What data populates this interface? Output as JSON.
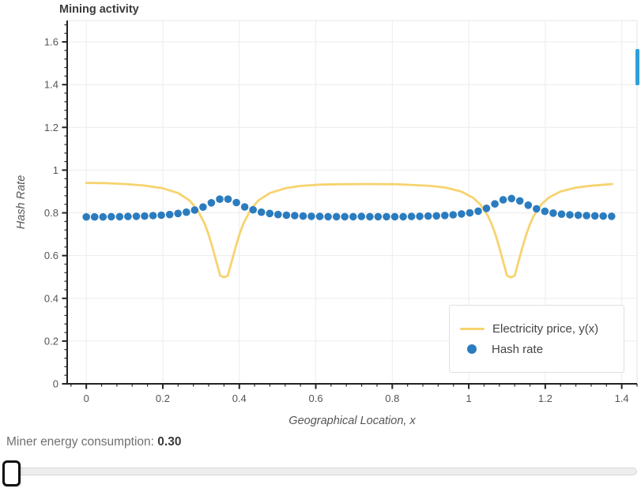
{
  "title": "Mining activity",
  "colors": {
    "price_line": "#f7d36f",
    "hash_dots": "#2b7cbf",
    "accent_bar": "#2f9fd8",
    "grid": "#ececec",
    "axis": "#222222",
    "tick_label": "#555555",
    "frame_border": "#e5e5e5"
  },
  "legend": {
    "items": [
      {
        "label": "Electricity price, y(x)",
        "swatch": "line"
      },
      {
        "label": "Hash rate",
        "swatch": "circle"
      }
    ]
  },
  "widget": {
    "label": "Miner energy consumption: ",
    "value": "0.30"
  },
  "slider": {
    "handle_position_pct": 0
  },
  "chart_data": {
    "type": "line+scatter",
    "title": "Mining activity",
    "xlabel": "Geographical Location, x",
    "ylabel": "Hash Rate",
    "xlim": [
      -0.05,
      1.44
    ],
    "ylim": [
      0,
      1.7
    ],
    "x_ticks": [
      0,
      0.2,
      0.4,
      0.6,
      0.8,
      1,
      1.2,
      1.4
    ],
    "y_ticks": [
      0,
      0.2,
      0.4,
      0.6,
      0.8,
      1,
      1.2,
      1.4,
      1.6
    ],
    "minor_tick_step": 0.04,
    "grid": true,
    "legend_position": "bottom_right",
    "series": [
      {
        "name": "Electricity price, y(x)",
        "type": "line",
        "color": "#f7d36f",
        "x": [
          0,
          0.05,
          0.1,
          0.15,
          0.2,
          0.24,
          0.27,
          0.29,
          0.31,
          0.32,
          0.33,
          0.34,
          0.35,
          0.36,
          0.37,
          0.38,
          0.39,
          0.4,
          0.41,
          0.43,
          0.45,
          0.48,
          0.52,
          0.56,
          0.61,
          0.66,
          0.735,
          0.81,
          0.86,
          0.9,
          0.94,
          0.98,
          1.01,
          1.03,
          1.05,
          1.06,
          1.07,
          1.08,
          1.09,
          1.1,
          1.11,
          1.12,
          1.13,
          1.14,
          1.15,
          1.16,
          1.17,
          1.19,
          1.21,
          1.24,
          1.28,
          1.32,
          1.375
        ],
        "y": [
          0.94,
          0.939,
          0.935,
          0.928,
          0.915,
          0.893,
          0.858,
          0.816,
          0.747,
          0.697,
          0.637,
          0.572,
          0.506,
          0.498,
          0.506,
          0.572,
          0.637,
          0.697,
          0.747,
          0.816,
          0.858,
          0.893,
          0.915,
          0.926,
          0.932,
          0.934,
          0.935,
          0.934,
          0.93,
          0.926,
          0.918,
          0.9,
          0.872,
          0.84,
          0.786,
          0.747,
          0.697,
          0.637,
          0.572,
          0.506,
          0.498,
          0.506,
          0.572,
          0.637,
          0.697,
          0.747,
          0.786,
          0.84,
          0.872,
          0.9,
          0.918,
          0.927,
          0.935
        ]
      },
      {
        "name": "Hash rate",
        "type": "scatter",
        "color": "#2b7cbf",
        "x": [
          0,
          0.0218,
          0.0436,
          0.0654,
          0.0872,
          0.109,
          0.1308,
          0.1526,
          0.1744,
          0.1962,
          0.218,
          0.2398,
          0.2616,
          0.2834,
          0.3052,
          0.327,
          0.3488,
          0.3706,
          0.3924,
          0.4142,
          0.436,
          0.4578,
          0.4796,
          0.5014,
          0.5232,
          0.545,
          0.5668,
          0.5886,
          0.6104,
          0.6322,
          0.654,
          0.6758,
          0.6976,
          0.7194,
          0.7412,
          0.763,
          0.7848,
          0.8066,
          0.8284,
          0.8502,
          0.872,
          0.8938,
          0.9156,
          0.9374,
          0.9592,
          0.981,
          1.0028,
          1.0246,
          1.0464,
          1.0682,
          1.09,
          1.1118,
          1.1336,
          1.1554,
          1.1772,
          1.199,
          1.2208,
          1.2426,
          1.2644,
          1.2862,
          1.308,
          1.3298,
          1.3516,
          1.3734
        ],
        "y": [
          0.781,
          0.781,
          0.781,
          0.782,
          0.782,
          0.783,
          0.784,
          0.785,
          0.787,
          0.789,
          0.792,
          0.797,
          0.803,
          0.813,
          0.827,
          0.847,
          0.864,
          0.864,
          0.848,
          0.828,
          0.814,
          0.803,
          0.797,
          0.792,
          0.789,
          0.787,
          0.785,
          0.784,
          0.783,
          0.782,
          0.782,
          0.782,
          0.782,
          0.783,
          0.782,
          0.782,
          0.782,
          0.782,
          0.782,
          0.783,
          0.784,
          0.785,
          0.786,
          0.788,
          0.791,
          0.795,
          0.8,
          0.808,
          0.821,
          0.842,
          0.861,
          0.867,
          0.856,
          0.836,
          0.819,
          0.807,
          0.799,
          0.794,
          0.791,
          0.789,
          0.787,
          0.786,
          0.785,
          0.784
        ]
      }
    ]
  }
}
